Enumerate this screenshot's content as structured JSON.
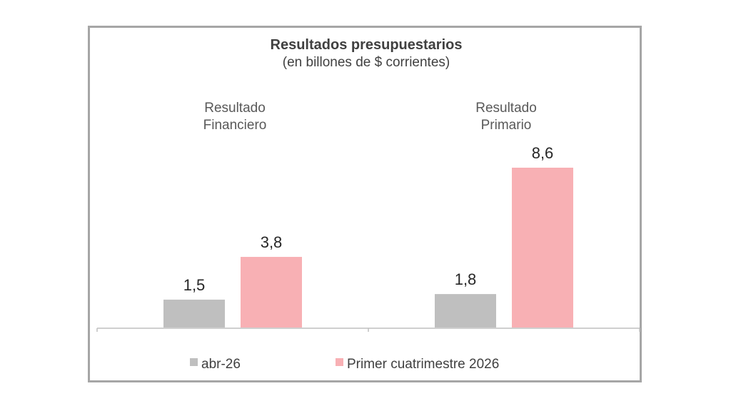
{
  "chart_data": {
    "type": "bar",
    "title": "Resultados presupuestarios",
    "subtitle": "(en billones de $ corrientes)",
    "categories": [
      [
        "Resultado",
        "Financiero"
      ],
      [
        "Resultado",
        "Primario"
      ]
    ],
    "series": [
      {
        "name": "abr-26",
        "values": [
          1.5,
          1.8
        ],
        "labels": [
          "1,5",
          "1,8"
        ],
        "color": "#bfbfbf"
      },
      {
        "name": "Primer cuatrimestre 2026",
        "values": [
          3.8,
          8.6
        ],
        "labels": [
          "3,8",
          "8,6"
        ],
        "color": "#f8b0b4"
      }
    ],
    "ylim": [
      0,
      8.6
    ],
    "grid": false,
    "legend_position": "bottom"
  },
  "colors": {
    "frame": "#a6a6a6",
    "axis": "#bfbfbf"
  }
}
